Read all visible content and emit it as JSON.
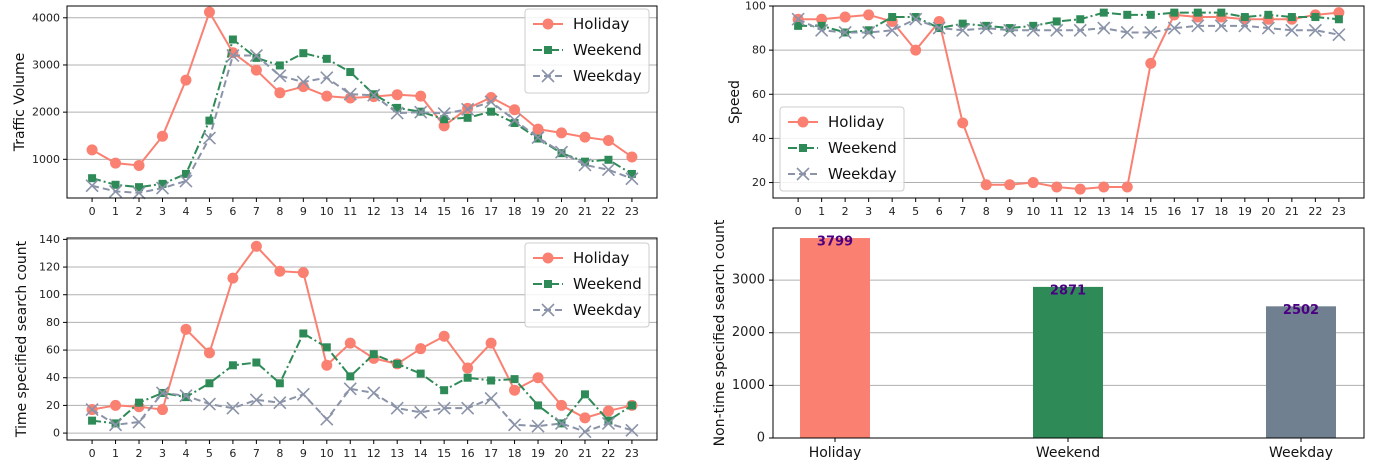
{
  "colors": {
    "holiday": "#FA8072",
    "weekend": "#2E8B57",
    "weekday": "#8A93A8",
    "bar_weekday": "#708090",
    "data_label": "#4B0082",
    "grid": "#B0B0B0"
  },
  "chart_data": [
    {
      "type": "line",
      "title": "",
      "xlabel": "",
      "ylabel": "Traffic Volume",
      "x": [
        0,
        1,
        2,
        3,
        4,
        5,
        6,
        7,
        8,
        9,
        10,
        11,
        12,
        13,
        14,
        15,
        16,
        17,
        18,
        19,
        20,
        21,
        22,
        23
      ],
      "ylim": [
        180,
        4250
      ],
      "yticks": [
        1000,
        2000,
        3000,
        4000
      ],
      "grid": "horizontal",
      "legend": "top-right",
      "series": [
        {
          "name": "Holiday",
          "style": "solid-circle",
          "values": [
            1200,
            920,
            870,
            1490,
            2680,
            4120,
            3260,
            2890,
            2410,
            2540,
            2340,
            2300,
            2330,
            2370,
            2340,
            1710,
            2080,
            2310,
            2050,
            1640,
            1560,
            1470,
            1400,
            1050
          ]
        },
        {
          "name": "Weekend",
          "style": "dashdot-square",
          "values": [
            600,
            460,
            410,
            480,
            690,
            1820,
            3540,
            3150,
            2990,
            3250,
            3130,
            2850,
            2380,
            2090,
            2010,
            1850,
            1880,
            2010,
            1770,
            1440,
            1130,
            950,
            990,
            690
          ]
        },
        {
          "name": "Weekday",
          "style": "dashed-x",
          "values": [
            440,
            320,
            290,
            390,
            540,
            1450,
            3200,
            3200,
            2770,
            2640,
            2730,
            2380,
            2360,
            1980,
            2000,
            1970,
            2060,
            2220,
            1830,
            1460,
            1150,
            880,
            780,
            590
          ]
        }
      ]
    },
    {
      "type": "line",
      "title": "",
      "xlabel": "",
      "ylabel": "Speed",
      "x": [
        0,
        1,
        2,
        3,
        4,
        5,
        6,
        7,
        8,
        9,
        10,
        11,
        12,
        13,
        14,
        15,
        16,
        17,
        18,
        19,
        20,
        21,
        22,
        23
      ],
      "ylim": [
        13,
        100
      ],
      "yticks": [
        20,
        40,
        60,
        80,
        100
      ],
      "grid": "horizontal",
      "legend": "bottom-left",
      "series": [
        {
          "name": "Holiday",
          "style": "solid-circle",
          "values": [
            94,
            94,
            95,
            96,
            93,
            80,
            93,
            47,
            19,
            19,
            20,
            18,
            17,
            18,
            18,
            74,
            96,
            95,
            95,
            94,
            94,
            94,
            96,
            97
          ]
        },
        {
          "name": "Weekend",
          "style": "dashdot-square",
          "values": [
            91,
            91,
            88,
            89,
            95,
            95,
            90,
            92,
            91,
            90,
            91,
            93,
            94,
            97,
            96,
            96,
            97,
            97,
            97,
            95,
            96,
            95,
            95,
            94
          ]
        },
        {
          "name": "Weekday",
          "style": "dashed-x",
          "values": [
            94,
            89,
            88,
            88,
            89,
            94,
            90,
            89,
            90,
            89,
            89,
            89,
            89,
            90,
            88,
            88,
            90,
            91,
            91,
            91,
            90,
            89,
            89,
            87
          ]
        }
      ]
    },
    {
      "type": "line",
      "title": "",
      "xlabel": "",
      "ylabel": "Time specified search count",
      "x": [
        0,
        1,
        2,
        3,
        4,
        5,
        6,
        7,
        8,
        9,
        10,
        11,
        12,
        13,
        14,
        15,
        16,
        17,
        18,
        19,
        20,
        21,
        22,
        23
      ],
      "ylim": [
        -5,
        141
      ],
      "yticks": [
        0,
        20,
        40,
        60,
        80,
        100,
        120,
        140
      ],
      "grid": "horizontal",
      "legend": "top-right",
      "series": [
        {
          "name": "Holiday",
          "style": "solid-circle",
          "values": [
            17,
            20,
            19,
            17,
            75,
            58,
            112,
            135,
            117,
            116,
            49,
            65,
            54,
            50,
            61,
            70,
            47,
            65,
            31,
            40,
            20,
            11,
            16,
            20
          ]
        },
        {
          "name": "Weekend",
          "style": "dashdot-square",
          "values": [
            9,
            7,
            22,
            29,
            26,
            36,
            49,
            51,
            36,
            72,
            62,
            41,
            57,
            50,
            43,
            31,
            40,
            38,
            39,
            20,
            7,
            28,
            9,
            20
          ]
        },
        {
          "name": "Weekday",
          "style": "dashed-x",
          "values": [
            17,
            6,
            8,
            29,
            27,
            21,
            18,
            24,
            22,
            28,
            10,
            32,
            29,
            18,
            15,
            18,
            18,
            25,
            6,
            5,
            7,
            1,
            7,
            2
          ]
        }
      ]
    },
    {
      "type": "bar",
      "title": "",
      "xlabel": "",
      "ylabel": "Non-time specified search count",
      "categories": [
        "Holiday",
        "Weekend",
        "Weekday"
      ],
      "values": [
        3799,
        2871,
        2502
      ],
      "data_labels": [
        "3799",
        "2871",
        "2502"
      ],
      "ylim": [
        0,
        3990
      ],
      "yticks": [
        0,
        1000,
        2000,
        3000
      ],
      "grid": "horizontal"
    }
  ]
}
